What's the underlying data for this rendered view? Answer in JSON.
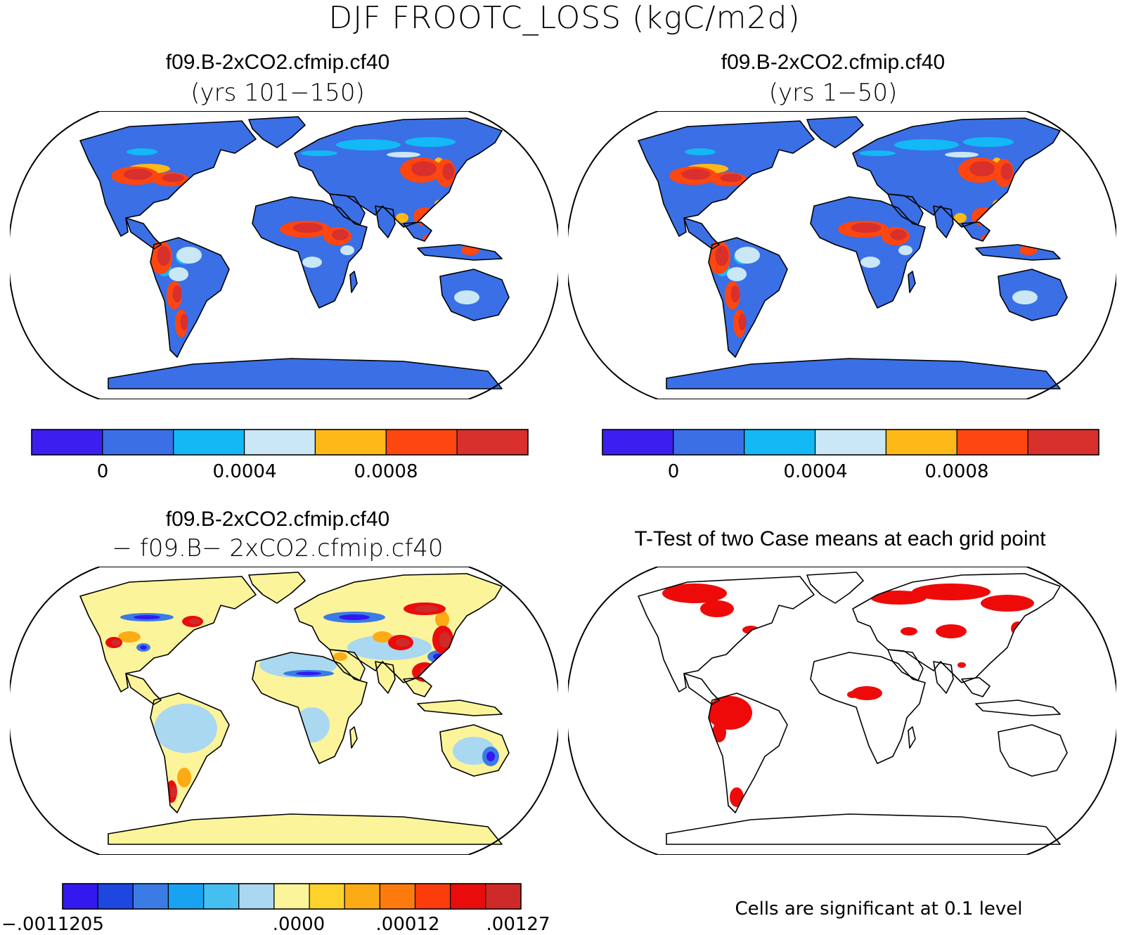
{
  "title": "DJF FROOTC_LOSS (kgC/m2d)",
  "panels": {
    "top_left": {
      "title": "f09.B-2xCO2.cfmip.cf40",
      "subtitle": "(yrs 101−150)"
    },
    "top_right": {
      "title": "f09.B-2xCO2.cfmip.cf40",
      "subtitle": "(yrs 1−50)"
    },
    "bottom_left": {
      "title": "f09.B-2xCO2.cfmip.cf40",
      "subtitle": "− f09.B− 2xCO2.cfmip.cf40"
    },
    "bottom_right": {
      "title": "T-Test of two Case means at each grid point",
      "note": "Cells are significant at 0.1 level"
    }
  },
  "colorbars": {
    "field": {
      "colors": [
        "#3a1ff0",
        "#3a6fe6",
        "#12b9f5",
        "#cae7f5",
        "#fdb918",
        "#fe4610",
        "#d8302c"
      ],
      "tick_labels": [
        "0",
        "0.0004",
        "0.0008"
      ]
    },
    "diff": {
      "colors": [
        "#3318f0",
        "#1e46e0",
        "#3a7be6",
        "#17a2f2",
        "#44bff0",
        "#a9d8f0",
        "#fcf49a",
        "#fdd22a",
        "#fcab14",
        "#fd7b0c",
        "#fb3c0c",
        "#ea0c0c",
        "#cf2a2a"
      ],
      "tick_labels": [
        ".0011205",
        ".0000",
        ".00012",
        ".00127"
      ],
      "tick_prefix_first": "−"
    }
  },
  "colors": {
    "ocean": "#ffffff",
    "land_base_field": "#3a6fe6",
    "land_base_diff": "#fcf49a",
    "significant": "#ef0a0a",
    "outline": "#000000"
  }
}
